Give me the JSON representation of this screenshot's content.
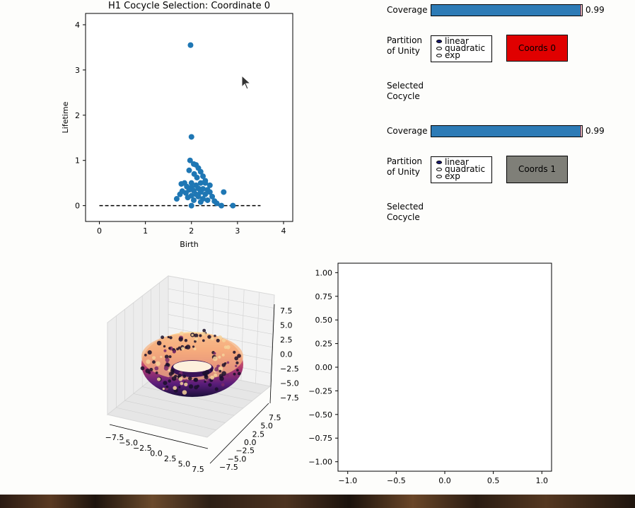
{
  "chart_data": [
    {
      "type": "scatter",
      "title": "H1 Cocycle Selection: Coordinate 0",
      "xlabel": "Birth",
      "ylabel": "Lifetime",
      "xlim": [
        -0.3,
        4.2
      ],
      "ylim": [
        -0.35,
        4.25
      ],
      "xticks": [
        0,
        1,
        2,
        3,
        4
      ],
      "yticks": [
        0,
        1,
        2,
        3,
        4
      ],
      "diagonal_line": {
        "x": [
          0,
          3.5
        ],
        "y": [
          0,
          0
        ],
        "style": "dashed",
        "color": "#000000"
      },
      "point_color": "#1f77b4",
      "points": [
        [
          1.98,
          3.55
        ],
        [
          2.0,
          1.52
        ],
        [
          1.97,
          1.0
        ],
        [
          2.1,
          0.9
        ],
        [
          2.05,
          0.92
        ],
        [
          2.15,
          0.83
        ],
        [
          1.95,
          0.78
        ],
        [
          2.2,
          0.75
        ],
        [
          2.06,
          0.7
        ],
        [
          2.25,
          0.65
        ],
        [
          2.12,
          0.62
        ],
        [
          2.3,
          0.55
        ],
        [
          1.85,
          0.5
        ],
        [
          2.0,
          0.5
        ],
        [
          2.2,
          0.5
        ],
        [
          2.3,
          0.5
        ],
        [
          1.78,
          0.48
        ],
        [
          2.1,
          0.45
        ],
        [
          2.4,
          0.45
        ],
        [
          1.9,
          0.42
        ],
        [
          2.0,
          0.4
        ],
        [
          2.15,
          0.38
        ],
        [
          2.25,
          0.37
        ],
        [
          2.35,
          0.35
        ],
        [
          1.95,
          0.35
        ],
        [
          2.05,
          0.33
        ],
        [
          1.8,
          0.32
        ],
        [
          2.7,
          0.3
        ],
        [
          2.2,
          0.3
        ],
        [
          2.4,
          0.3
        ],
        [
          1.88,
          0.28
        ],
        [
          2.1,
          0.25
        ],
        [
          2.3,
          0.25
        ],
        [
          1.75,
          0.25
        ],
        [
          2.0,
          0.22
        ],
        [
          2.15,
          0.2
        ],
        [
          2.45,
          0.2
        ],
        [
          1.92,
          0.18
        ],
        [
          2.25,
          0.15
        ],
        [
          1.68,
          0.15
        ],
        [
          2.35,
          0.12
        ],
        [
          2.05,
          0.12
        ],
        [
          2.5,
          0.1
        ],
        [
          2.2,
          0.08
        ],
        [
          2.0,
          0.0
        ],
        [
          2.65,
          0.0
        ],
        [
          2.9,
          0.0
        ],
        [
          2.55,
          0.05
        ]
      ]
    },
    {
      "type": "scatter3d",
      "title": "",
      "xticks": [
        "−7.5",
        "−5.0",
        "−2.5",
        "0.0",
        "2.5",
        "5.0",
        "7.5"
      ],
      "yticks": [
        "−7.5",
        "−5.0",
        "−2.5",
        "0.0",
        "2.5",
        "5.0",
        "7.5"
      ],
      "zticks": [
        "−7.5",
        "−5.0",
        "−2.5",
        "0.0",
        "2.5",
        "5.0",
        "7.5"
      ],
      "shape": "torus",
      "colormap": "magma"
    },
    {
      "type": "scatter",
      "title": "",
      "xlim": [
        -1.1,
        1.1
      ],
      "ylim": [
        -1.1,
        1.1
      ],
      "xticks": [
        "−1.0",
        "−0.5",
        "0.0",
        "0.5",
        "1.0"
      ],
      "yticks": [
        "1.00",
        "0.75",
        "0.50",
        "0.25",
        "0.00",
        "−0.25",
        "−0.50",
        "−0.75",
        "−1.00"
      ],
      "points": []
    }
  ],
  "controls": {
    "groups": [
      {
        "coverage_label": "Coverage",
        "coverage_value": 0.99,
        "coverage_text": "0.99",
        "partition_label_1": "Partition",
        "partition_label_2": "of Unity",
        "options": [
          "linear",
          "quadratic",
          "exp"
        ],
        "selected_option": 0,
        "selected_label_1": "Selected",
        "selected_label_2": "Cocycle",
        "button_label": "Coords 0",
        "button_color": "#e00000"
      },
      {
        "coverage_label": "Coverage",
        "coverage_value": 0.99,
        "coverage_text": "0.99",
        "partition_label_1": "Partition",
        "partition_label_2": "of Unity",
        "options": [
          "linear",
          "quadratic",
          "exp"
        ],
        "selected_option": 0,
        "selected_label_1": "Selected",
        "selected_label_2": "Cocycle",
        "button_label": "Coords 1",
        "button_color": "#7f7f78"
      }
    ]
  },
  "colors": {
    "bar_fill": "#2d7bb6",
    "marker": "#c03030"
  }
}
